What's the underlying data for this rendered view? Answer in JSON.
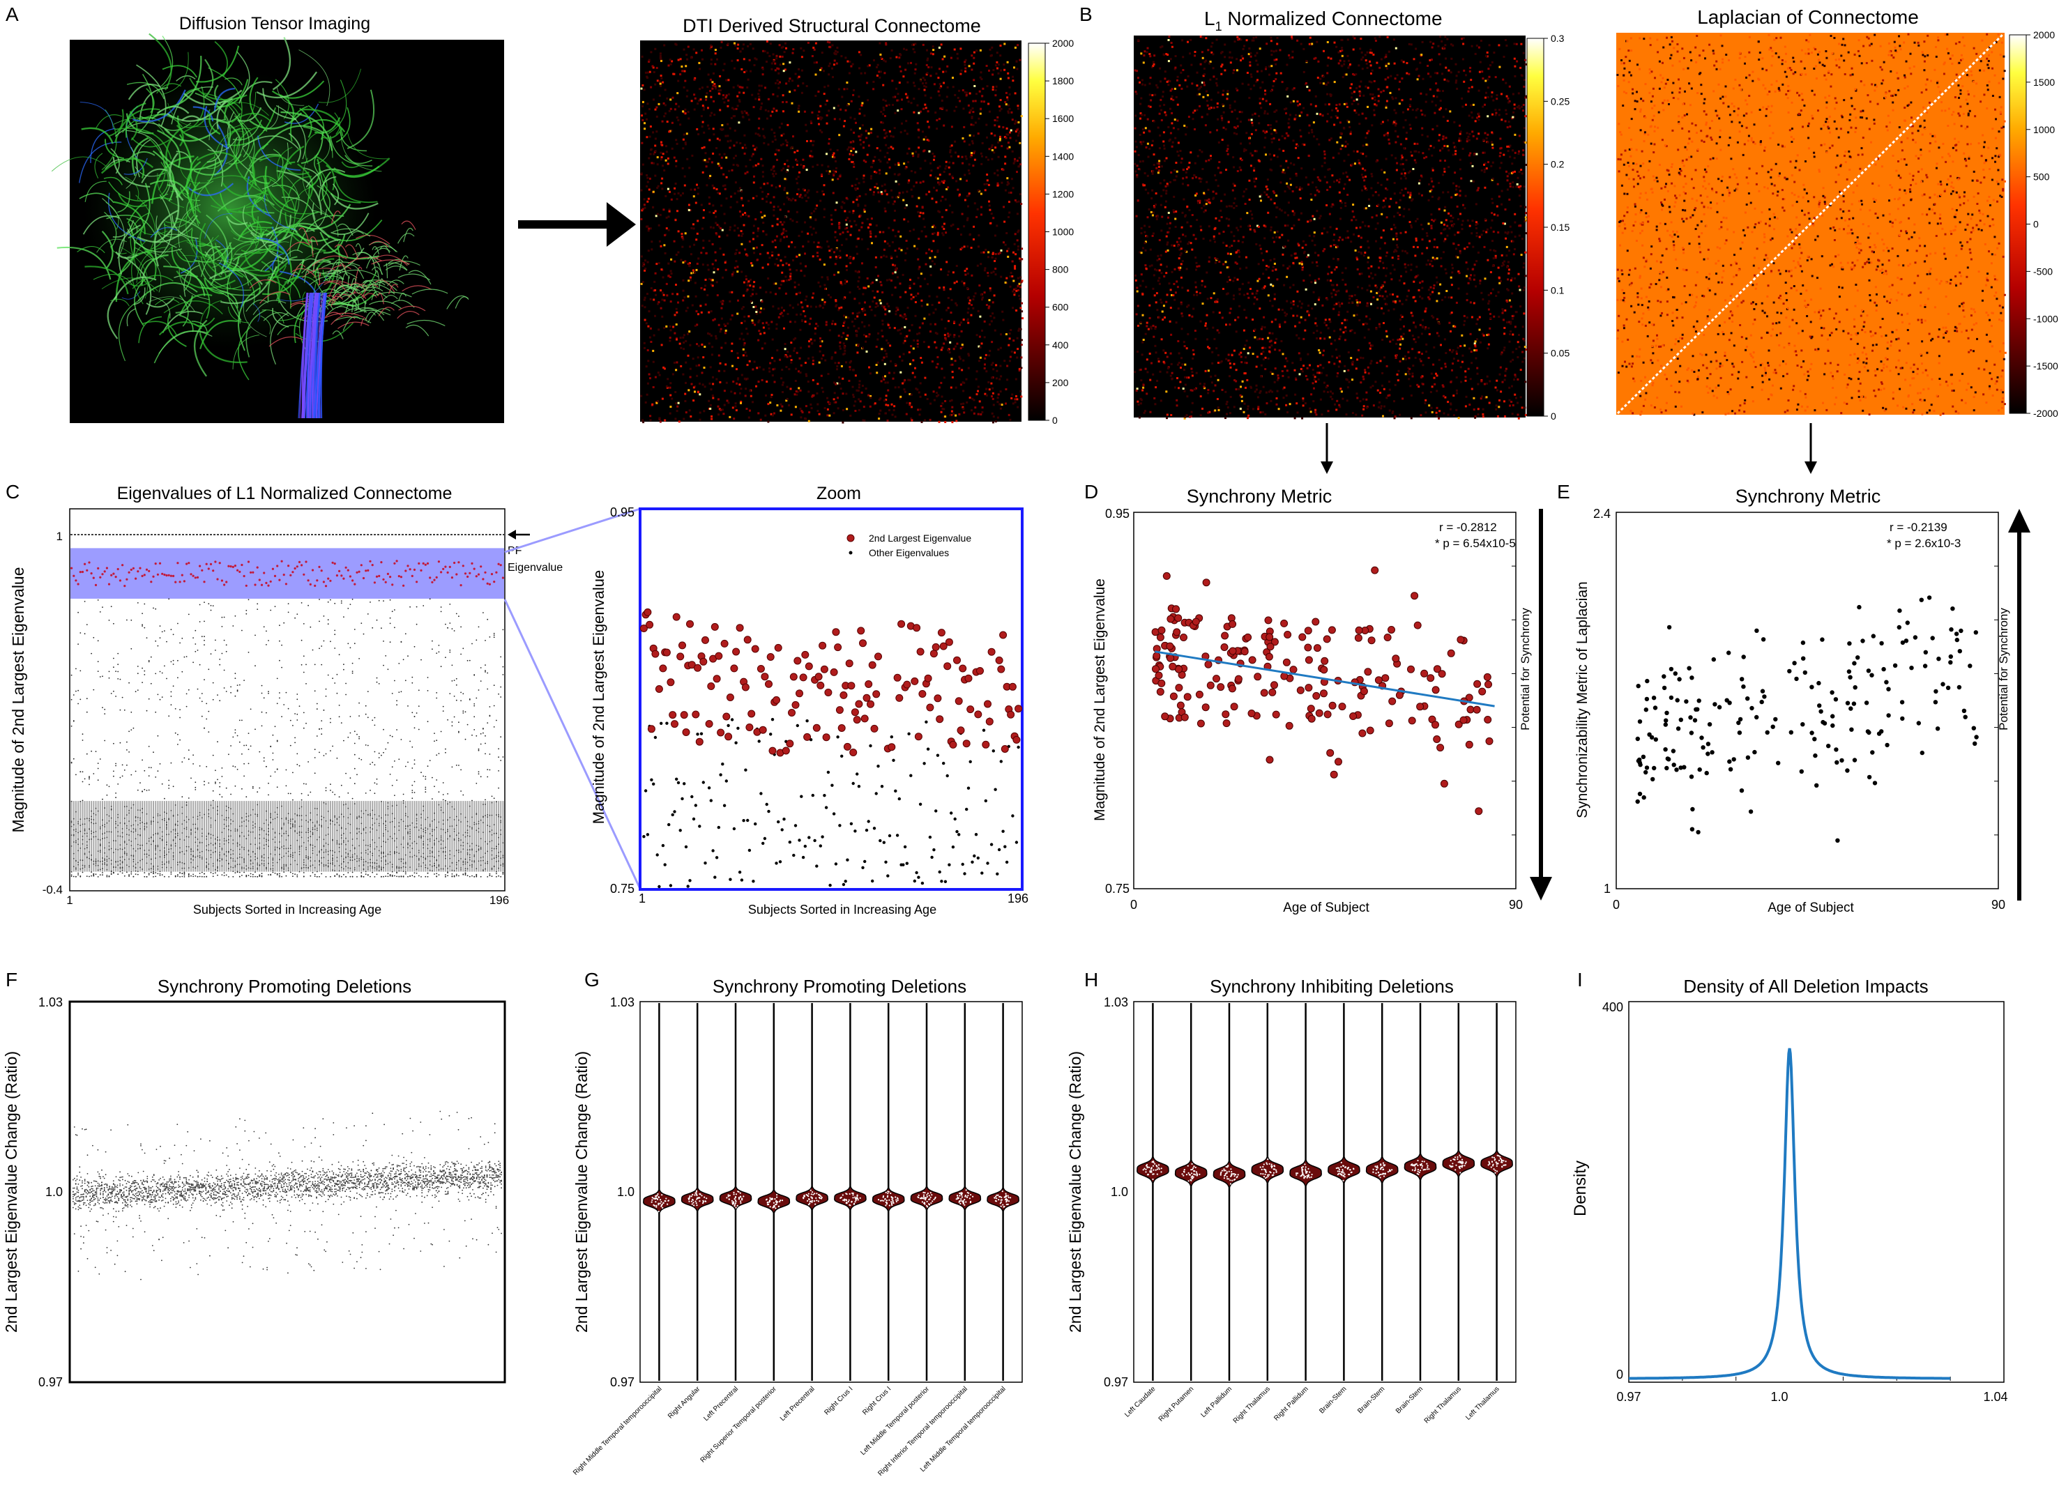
{
  "panel_letters": [
    "A",
    "B",
    "C",
    "D",
    "E",
    "F",
    "G",
    "H",
    "I"
  ],
  "panelA": {
    "dti_title": "Diffusion Tensor Imaging",
    "conn_title": "DTI Derived Structural Connectome",
    "conn_cbar": [
      "2000",
      "1800",
      "1600",
      "1400",
      "1200",
      "1000",
      "800",
      "600",
      "400",
      "200",
      "0"
    ]
  },
  "panelB": {
    "l1_title_prefix": "L",
    "l1_title_sub": "1",
    "l1_title_rest": " Normalized Connectome",
    "l1_cbar": [
      "0.3",
      "0.25",
      "0.2",
      "0.15",
      "0.1",
      "0.05",
      "0"
    ],
    "lap_title": "Laplacian of Connectome",
    "lap_cbar": [
      "2000",
      "1500",
      "1000",
      "500",
      "0",
      "-500",
      "-1000",
      "-1500",
      "-2000"
    ]
  },
  "chart_data": [
    {
      "id": "C",
      "type": "scatter",
      "title": "Eigenvalues of L1 Normalized Connectome",
      "xlabel": "Subjects Sorted in Increasing Age",
      "ylabel": "Magnitude of 2nd Largest Eigenvalue",
      "xlim": [
        1,
        196
      ],
      "ylim": [
        -0.4,
        1.1
      ],
      "xticks": [
        "1",
        "196"
      ],
      "yticks": [
        "1",
        "-0.4"
      ],
      "highlight_band": [
        0.75,
        0.95
      ],
      "annotation": [
        "PF",
        "Eigenvalue"
      ],
      "pf_eigenvalue": 1.0,
      "second_eigenvalue_range": [
        0.8,
        0.9
      ],
      "other_eigenvalue_range": [
        -0.35,
        0.75
      ]
    },
    {
      "id": "Czoom",
      "type": "scatter",
      "title": "Zoom",
      "xlabel": "Subjects Sorted in Increasing Age",
      "ylabel": "Magnitude of 2nd Largest Eigenvalue",
      "xlim": [
        1,
        196
      ],
      "ylim": [
        0.75,
        0.95
      ],
      "xticks": [
        "1",
        "196"
      ],
      "yticks": [
        "0.95",
        "0.75"
      ],
      "legend": [
        "2nd Largest Eigenvalue",
        "Other Eigenvalues"
      ],
      "second_eigenvalue_range": [
        0.8,
        0.9
      ],
      "other_eigenvalue_range": [
        0.75,
        0.84
      ]
    },
    {
      "id": "D",
      "type": "scatter",
      "title": "Synchrony Metric",
      "xlabel": "Age of Subject",
      "ylabel": "Magnitude of 2nd Largest Eigenvalue",
      "side_label": "Potential for Synchrony",
      "xlim": [
        0,
        90
      ],
      "ylim": [
        0.75,
        0.95
      ],
      "xticks": [
        "0",
        "90"
      ],
      "yticks": [
        "0.95",
        "0.75"
      ],
      "stats": [
        "r = -0.2812",
        "* p = 6.54x10-5"
      ],
      "fit_line": {
        "x": [
          5,
          85
        ],
        "y": [
          0.876,
          0.847
        ]
      }
    },
    {
      "id": "E",
      "type": "scatter",
      "title": "Synchrony Metric",
      "xlabel": "Age of Subject",
      "ylabel": "Synchronizability Metric of Laplacian",
      "side_label": "Potential for Synchrony",
      "xlim": [
        0,
        90
      ],
      "ylim": [
        1,
        2.4
      ],
      "xticks": [
        "0",
        "90"
      ],
      "yticks": [
        "2.4",
        "1"
      ],
      "stats": [
        "r = -0.2139",
        "* p = 2.6x10-3"
      ]
    },
    {
      "id": "F",
      "type": "scatter",
      "title": "Synchrony Promoting Deletions",
      "ylabel": "2nd Largest Eigenvalue Change (Ratio)",
      "ylim": [
        0.97,
        1.03
      ],
      "yticks": [
        "1.03",
        "1.0",
        "0.97"
      ]
    },
    {
      "id": "G",
      "type": "violin",
      "title": "Synchrony Promoting Deletions",
      "ylabel": "2nd Largest Eigenvalue Change (Ratio)",
      "ylim": [
        0.97,
        1.03
      ],
      "yticks": [
        "1.03",
        "1.0",
        "0.97"
      ],
      "categories": [
        "Right Middle Temporal temporooccipital",
        "Right Angular",
        "Left Precentral",
        "Right Superior Temporal posterior",
        "Left Precentral",
        "Right Crus I",
        "Right Crus I",
        "Left Middle Temporal posterior",
        "Right Inferior Temporal temporooccipital",
        "Left Middle Temporal temporooccipital"
      ],
      "medians": [
        0.9985,
        0.9988,
        0.999,
        0.9985,
        0.999,
        0.999,
        0.9988,
        0.999,
        0.999,
        0.9988
      ]
    },
    {
      "id": "H",
      "type": "violin",
      "title": "Synchrony Inhibiting Deletions",
      "ylabel": "2nd Largest Eigenvalue Change (Ratio)",
      "ylim": [
        0.97,
        1.03
      ],
      "yticks": [
        "1.03",
        "1.0",
        "0.97"
      ],
      "categories": [
        "Left Caudate",
        "Right Putamen",
        "Left Pallidum",
        "Right Thalamus",
        "Right Pallidum",
        "Brain-Stem",
        "Brain-Stem",
        "Brain-Stem",
        "Right Thalamus",
        "Left Thalamus"
      ],
      "medians": [
        1.0035,
        1.003,
        1.0028,
        1.0035,
        1.003,
        1.0035,
        1.0035,
        1.004,
        1.0045,
        1.0045
      ]
    },
    {
      "id": "I",
      "type": "line",
      "title": "Density of All Deletion Impacts",
      "xlabel": "",
      "ylabel": "Density",
      "xlim": [
        0.97,
        1.04
      ],
      "ylim": [
        0,
        400
      ],
      "xticks": [
        "0.97",
        "1.0",
        "1.04"
      ],
      "yticks": [
        "400",
        "0"
      ],
      "peak": {
        "x": 1.0,
        "y": 350
      }
    }
  ]
}
